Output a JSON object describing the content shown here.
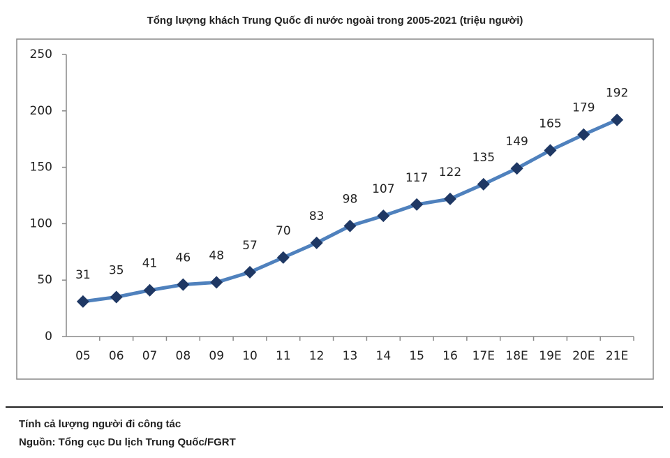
{
  "chart_data": {
    "type": "line",
    "title": "Tổng lượng khách Trung Quốc đi nước ngoài trong 2005-2021 (triệu người)",
    "categories": [
      "05",
      "06",
      "07",
      "08",
      "09",
      "10",
      "11",
      "12",
      "13",
      "14",
      "15",
      "16",
      "17E",
      "18E",
      "19E",
      "20E",
      "21E"
    ],
    "series": [
      {
        "color": "#4f81bd",
        "marker_color": "#1f3864",
        "values": [
          31,
          35,
          41,
          46,
          48,
          57,
          70,
          83,
          98,
          107,
          117,
          122,
          135,
          149,
          165,
          179,
          192
        ]
      }
    ],
    "ylim": [
      0,
      250
    ],
    "yticks": [
      0,
      50,
      100,
      150,
      200,
      250
    ],
    "grid": false,
    "data_labels": true
  },
  "notes": [
    "Tính cả lượng người đi công tác",
    "Nguồn: Tổng cục Du lịch Trung Quốc/FGRT"
  ]
}
